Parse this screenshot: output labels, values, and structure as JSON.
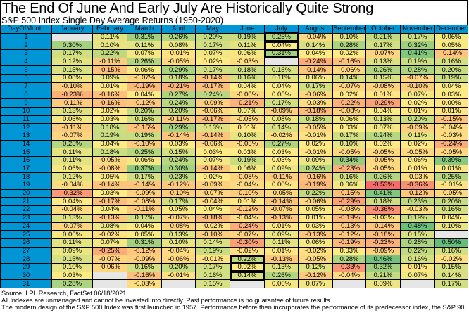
{
  "title": "The End Of June And Early July Are Historically Quite Strong",
  "subtitle": "S&P 500 Index Single Day Average Returns (1950-2020)",
  "footer": [
    "Source: LPL Research, FactSet 06/18/2021",
    "All indexes are unmanaged and cannot be invested into directly. Past performance is no guarantee of future results.",
    "The modern design of the S&P 500 Index was first launched in 1957. Performance before then incorporates the performance of its predecessor index, the S&P 90."
  ],
  "colors": {
    "header": "#0096D6",
    "low": "#F8696B",
    "mid": "#FFEB84",
    "high": "#63BE7B",
    "empty": "#E6E6E6"
  },
  "chart_data": {
    "type": "heatmap",
    "row_header": "DayOfMonth",
    "columns": [
      "January",
      "February",
      "March",
      "April",
      "May",
      "June",
      "July",
      "August",
      "September",
      "October",
      "November",
      "December"
    ],
    "rows": [
      1,
      2,
      3,
      4,
      5,
      6,
      7,
      8,
      9,
      10,
      11,
      12,
      13,
      14,
      15,
      16,
      17,
      18,
      19,
      20,
      21,
      22,
      23,
      24,
      25,
      26,
      27,
      28,
      29,
      30,
      31
    ],
    "unit": "%",
    "color_scale": "red-yellow-green",
    "highlighted": [
      {
        "column": "July",
        "rows": [
          1,
          2,
          3
        ]
      },
      {
        "column": "June",
        "rows": [
          28,
          29,
          30
        ]
      }
    ],
    "values": [
      [
        null,
        0.11,
        0.31,
        0.26,
        0.2,
        0.19,
        0.25,
        -0.04,
        0.1,
        0.21,
        0.17,
        0.06
      ],
      [
        0.3,
        0.1,
        0.11,
        0.08,
        0.17,
        0.11,
        0.04,
        0.14,
        0.28,
        0.17,
        0.32,
        0.05
      ],
      [
        0.17,
        0.22,
        0.07,
        -0.01,
        0.07,
        0.06,
        0.31,
        0.04,
        0.02,
        -0.07,
        0.41,
        -0.14
      ],
      [
        0.12,
        -0.11,
        0.26,
        -0.05,
        0.02,
        -0.03,
        null,
        -0.24,
        -0.16,
        0.13,
        0.19,
        0.16
      ],
      [
        0.15,
        -0.15,
        0.06,
        0.29,
        0.17,
        0.18,
        0.15,
        -0.14,
        -0.06,
        0.26,
        0.28,
        0.2
      ],
      [
        0.08,
        0.09,
        -0.07,
        0.18,
        -0.14,
        0.16,
        0.11,
        0.06,
        0.14,
        0.15,
        -0.07,
        0.19
      ],
      [
        -0.1,
        0.01,
        -0.19,
        -0.21,
        -0.17,
        0.04,
        0.04,
        0.17,
        -0.07,
        -0.08,
        -0.1,
        0.04
      ],
      [
        -0.23,
        -0.16,
        0.04,
        0.27,
        0.24,
        -0.06,
        0.05,
        -0.06,
        0.02,
        0.01,
        0.07,
        0.03
      ],
      [
        -0.11,
        -0.16,
        -0.12,
        0.24,
        -0.09,
        -0.21,
        0.17,
        -0.03,
        -0.22,
        -0.29,
        0.02,
        0.0
      ],
      [
        0.13,
        0.02,
        0.2,
        0.2,
        -0.06,
        0.07,
        -0.09,
        -0.18,
        -0.08,
        0.04,
        0.01,
        0.01
      ],
      [
        0.06,
        0.03,
        0.16,
        -0.11,
        -0.17,
        -0.05,
        0.08,
        0.18,
        0.06,
        0.13,
        0.2,
        -0.15
      ],
      [
        -0.11,
        0.18,
        -0.15,
        0.29,
        0.13,
        0.01,
        0.14,
        -0.05,
        0.03,
        0.07,
        -0.09,
        -0.04
      ],
      [
        -0.07,
        0.19,
        0.19,
        -0.14,
        -0.14,
        0.1,
        -0.02,
        -0.01,
        0.17,
        0.24,
        0.11,
        -0.03
      ],
      [
        0.25,
        0.04,
        -0.1,
        0.03,
        -0.06,
        -0.05,
        0.27,
        0.02,
        0.1,
        0.02,
        0.02,
        -0.24
      ],
      [
        0.11,
        0.18,
        0.25,
        0.15,
        0.03,
        0.03,
        0.03,
        -0.01,
        -0.05,
        -0.05,
        -0.05,
        -0.05
      ],
      [
        0.11,
        -0.05,
        0.06,
        0.24,
        0.07,
        0.19,
        0.03,
        0.09,
        0.34,
        -0.05,
        0.06,
        0.39
      ],
      [
        0.06,
        -0.08,
        0.37,
        0.3,
        -0.14,
        0.06,
        0.09,
        0.24,
        -0.23,
        -0.05,
        0.01,
        0.01
      ],
      [
        0.12,
        0.05,
        0.17,
        0.23,
        0.02,
        -0.08,
        -0.11,
        -0.16,
        0.16,
        0.26,
        -0.03,
        0.25
      ],
      [
        -0.04,
        -0.14,
        -0.14,
        -0.12,
        -0.09,
        -0.04,
        0.0,
        -0.19,
        0.06,
        -0.53,
        -0.36,
        -0.01
      ],
      [
        -0.32,
        0.03,
        -0.09,
        -0.1,
        -0.07,
        -0.1,
        -0.05,
        0.22,
        -0.15,
        0.41,
        -0.12,
        -0.05
      ],
      [
        0.04,
        -0.17,
        -0.08,
        0.17,
        -0.04,
        0.01,
        -0.14,
        -0.06,
        -0.29,
        0.18,
        0.23,
        0.2
      ],
      [
        -0.04,
        0.04,
        -0.11,
        0.05,
        0.04,
        -0.12,
        -0.07,
        0.05,
        -0.08,
        -0.36,
        -0.03,
        0.16
      ],
      [
        0.13,
        -0.13,
        0.17,
        -0.07,
        -0.18,
        -0.04,
        -0.13,
        0.01,
        -0.19,
        -0.03,
        0.19,
        0.04
      ],
      [
        -0.07,
        0.08,
        0.04,
        -0.08,
        -0.02,
        -0.24,
        0.01,
        0.03,
        -0.13,
        -0.14,
        0.48,
        0.1
      ],
      [
        0.06,
        -0.02,
        0.05,
        0.13,
        -0.1,
        -0.07,
        0.09,
        -0.13,
        -0.12,
        -0.18,
        0.15,
        null
      ],
      [
        0.11,
        0.07,
        0.31,
        0.1,
        0.14,
        -0.3,
        0.11,
        0.06,
        -0.19,
        -0.23,
        0.28,
        0.5
      ],
      [
        0.09,
        -0.25,
        -0.12,
        -0.04,
        0.19,
        -0.02,
        0.01,
        -0.02,
        0.03,
        -0.09,
        0.22,
        0.16
      ],
      [
        0.15,
        -0.07,
        -0.09,
        -0.06,
        -0.01,
        0.22,
        -0.13,
        -0.05,
        0.28,
        0.46,
        0.16,
        -0.02
      ],
      [
        0.1,
        -0.06,
        0.16,
        0.2,
        0.17,
        0.02,
        0.13,
        0.12,
        -0.33,
        0.32,
        0.01,
        0.15
      ],
      [
        0.03,
        null,
        -0.16,
        -0.01,
        0.16,
        0.14,
        0.26,
        -0.12,
        -0.04,
        0.21,
        0.07,
        0.14
      ],
      [
        0.28,
        null,
        -0.03,
        null,
        0.15,
        null,
        0.06,
        0.07,
        null,
        0.09,
        null,
        0.17
      ]
    ]
  }
}
